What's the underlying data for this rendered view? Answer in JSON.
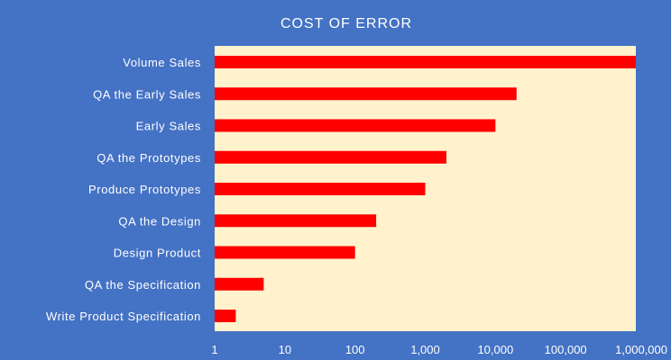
{
  "chart_data": {
    "type": "bar",
    "orientation": "horizontal",
    "title": "COST OF ERROR",
    "xscale": "log",
    "xlim": [
      1,
      1000000
    ],
    "x_ticks": [
      1,
      10,
      100,
      1000,
      10000,
      100000,
      1000000
    ],
    "x_tick_labels": [
      "1",
      "10",
      "100",
      "1,000",
      "10,000",
      "100,000",
      "1,000,000"
    ],
    "categories": [
      "Volume Sales",
      "QA the Early Sales",
      "Early Sales",
      "QA the Prototypes",
      "Produce Prototypes",
      "QA the Design",
      "Design Product",
      "QA the Specification",
      "Write Product Specification"
    ],
    "values": [
      1000000,
      20000,
      10000,
      2000,
      1000,
      200,
      100,
      5,
      2
    ],
    "grid": false,
    "legend": "none",
    "colors": {
      "background": "#4472C4",
      "plot_area": "#FFF2CC",
      "bar": "#FF0000",
      "text": "#FFFFFF"
    }
  }
}
